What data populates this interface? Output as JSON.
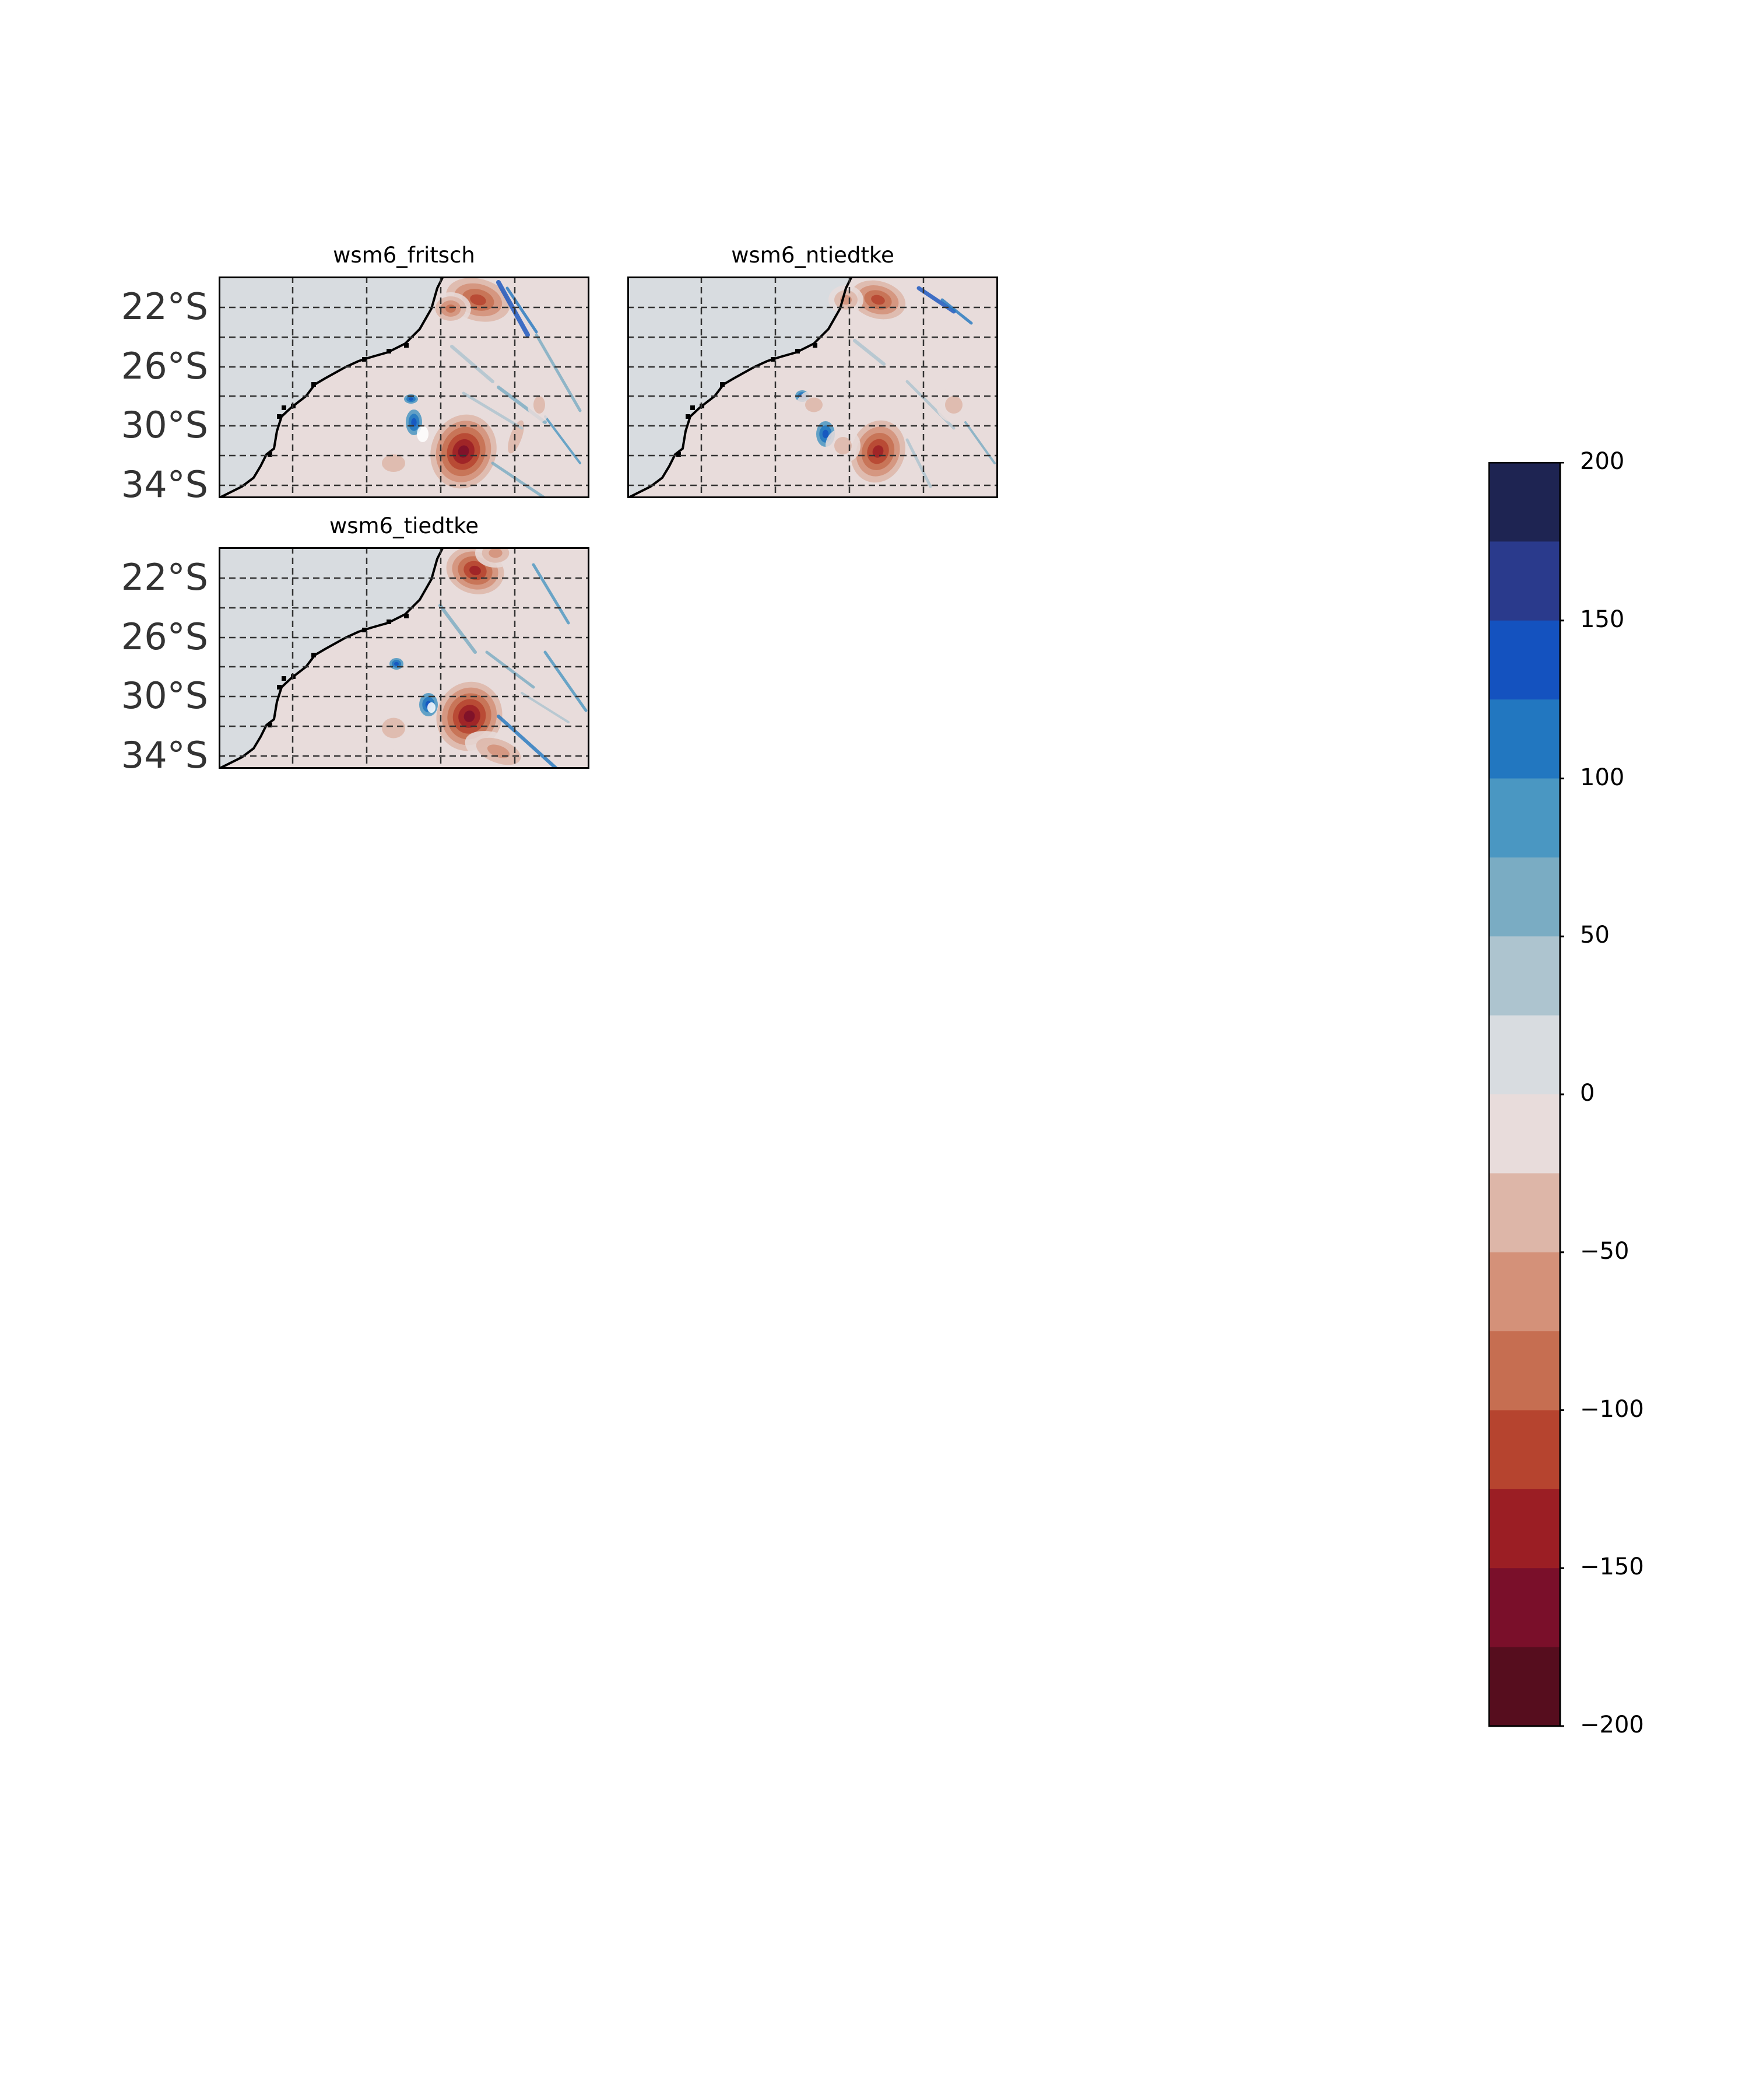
{
  "panels": [
    {
      "title": "wsm6_fritsch",
      "variant": 0,
      "lat_labels": [
        "22°S",
        "26°S",
        "30°S",
        "34°S"
      ]
    },
    {
      "title": "wsm6_ntiedtke",
      "variant": 1,
      "lat_labels": []
    },
    {
      "title": "wsm6_tiedtke",
      "variant": 2,
      "lat_labels": [
        "22°S",
        "26°S",
        "30°S",
        "34°S"
      ]
    }
  ],
  "colorbar": {
    "range": [
      -200,
      200
    ],
    "ticks": [
      "200",
      "150",
      "100",
      "50",
      "0",
      "−50",
      "−100",
      "−150",
      "−200"
    ],
    "colors_top_to_bottom": [
      "#1e2452",
      "#2a3a8c",
      "#1452bf",
      "#2277c0",
      "#4a97c2",
      "#7aacc3",
      "#adc4cf",
      "#d8dce0",
      "#e8dcdb",
      "#ddb6a8",
      "#d49179",
      "#c66e51",
      "#b6442f",
      "#9b1e24",
      "#7a0f2a",
      "#560d1e"
    ]
  },
  "map_colors": {
    "land": "#d8dce0",
    "ocean": "#e8dcdb",
    "coast": "#000000",
    "grid": "#333333"
  }
}
